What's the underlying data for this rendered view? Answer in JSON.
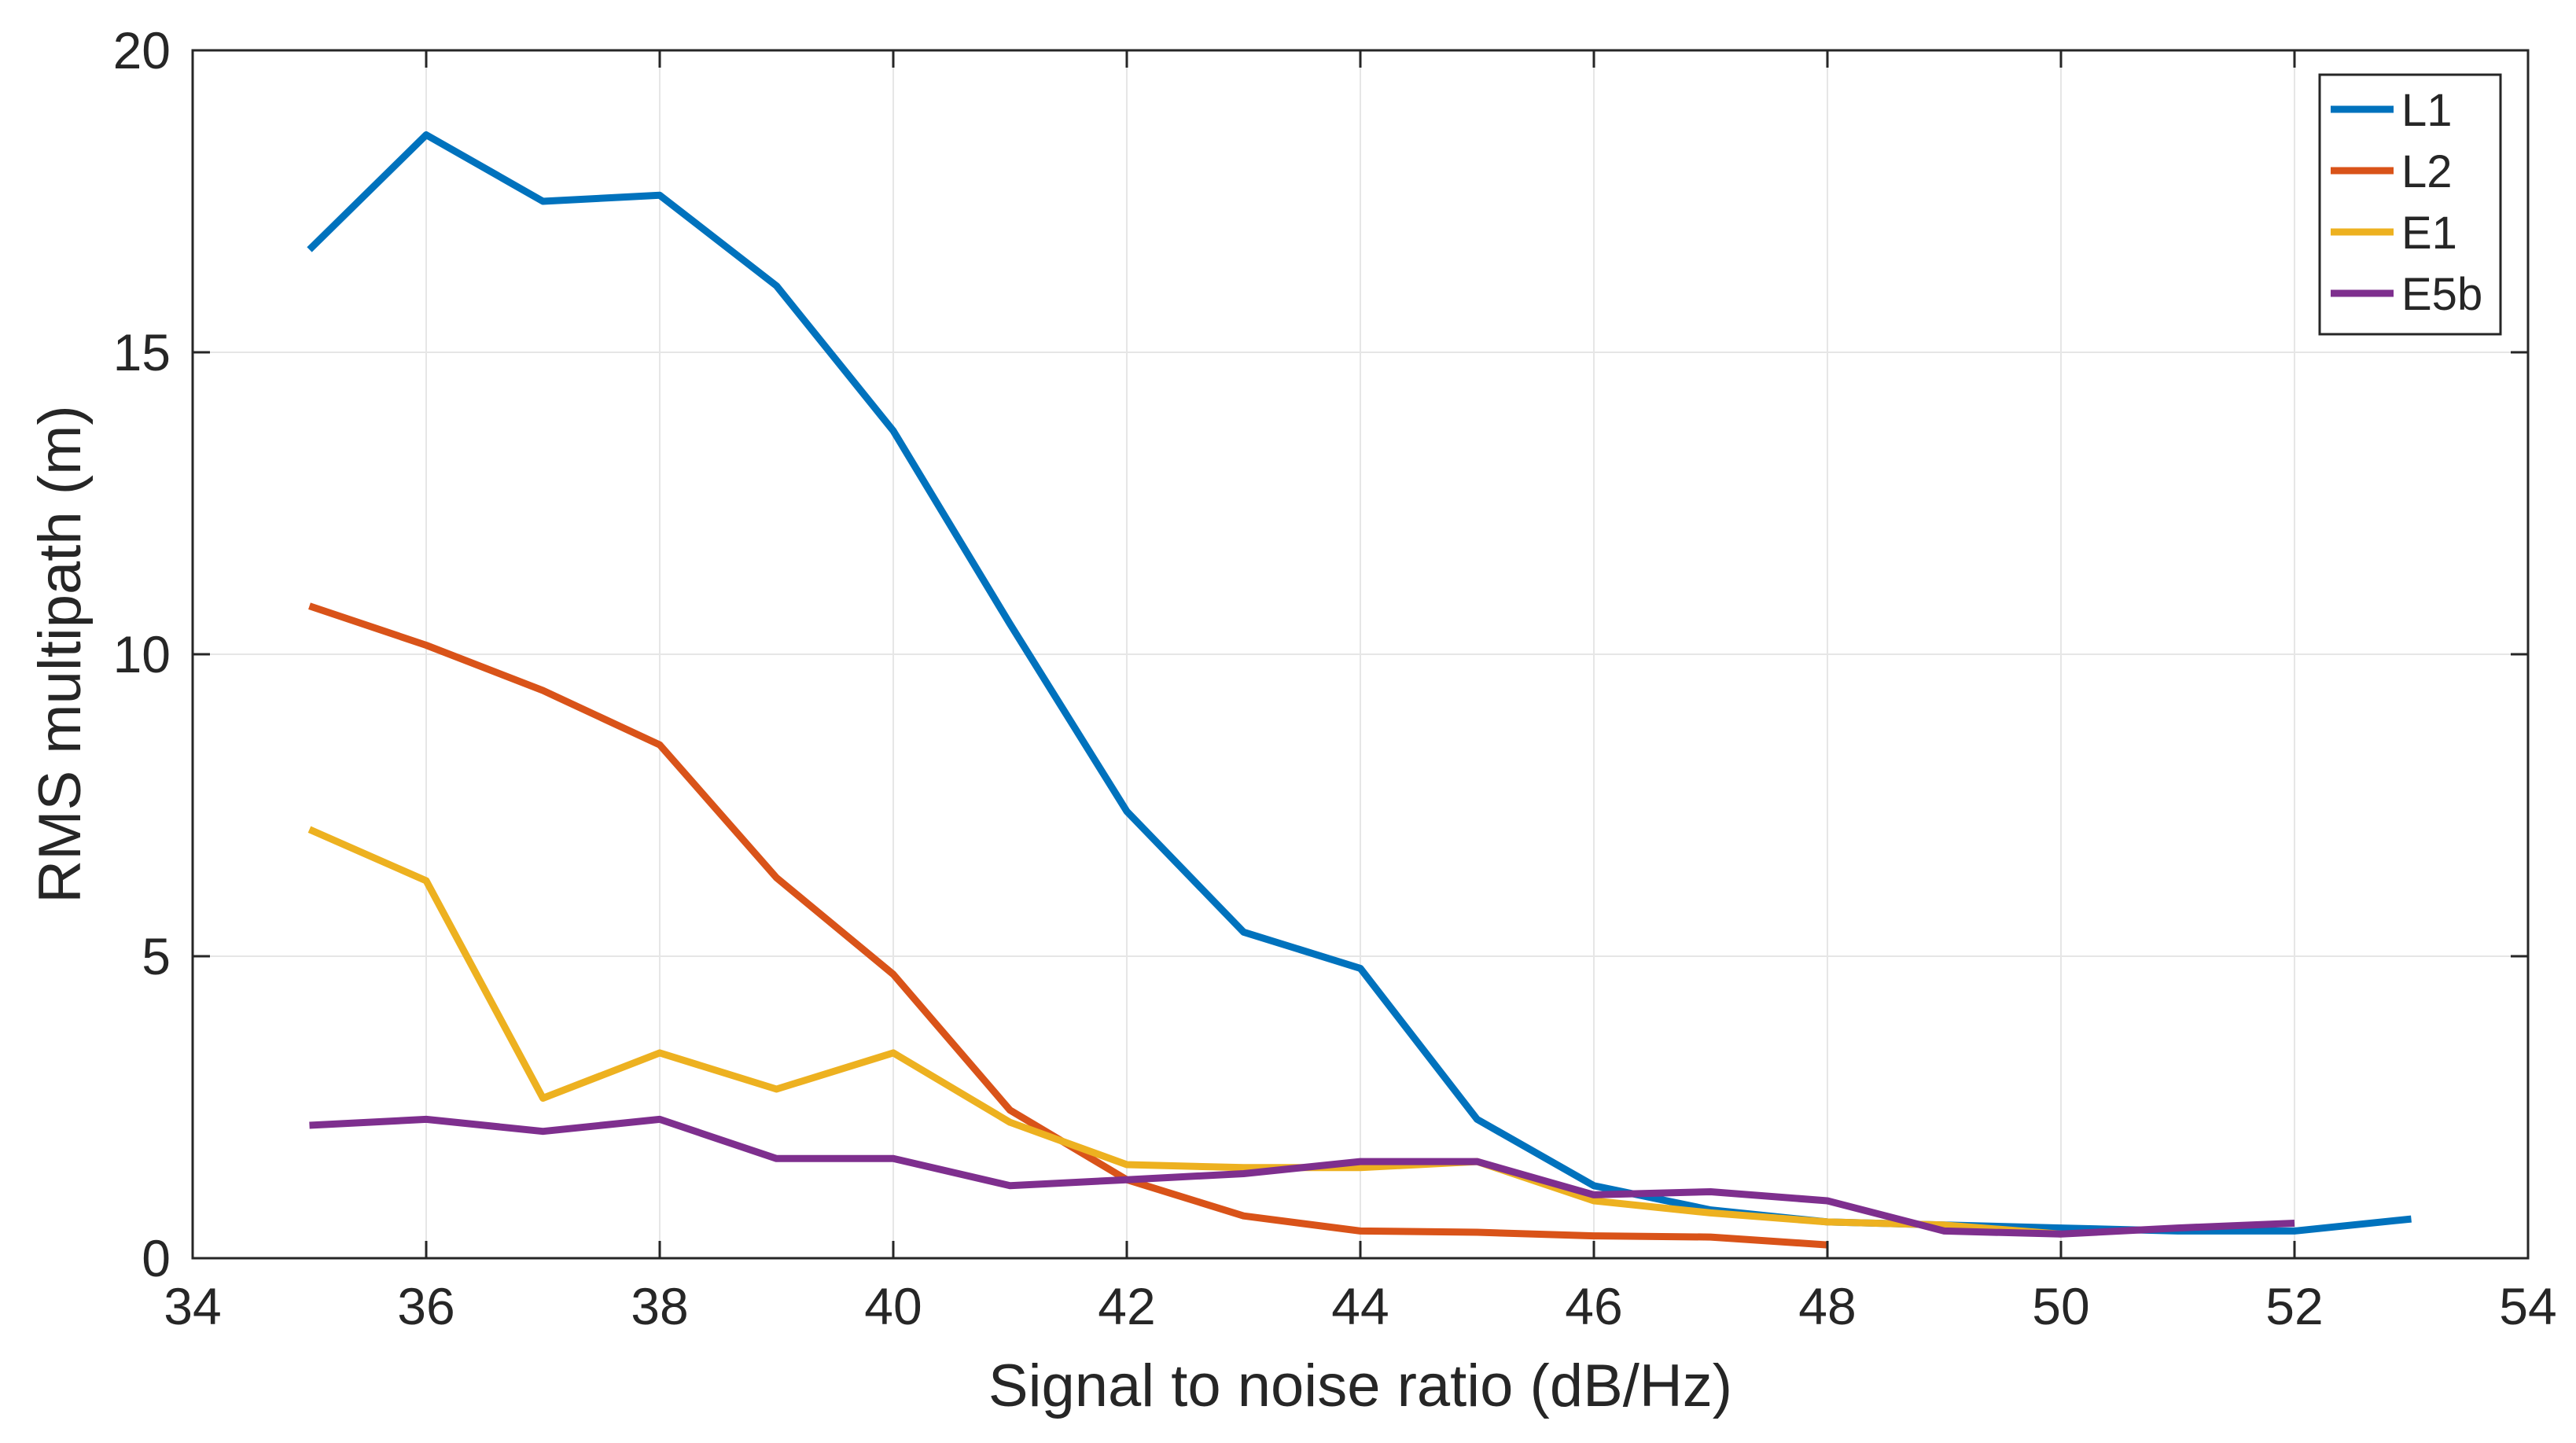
{
  "chart_data": {
    "type": "line",
    "title": "",
    "xlabel": "Signal to noise ratio (dB/Hz)",
    "ylabel": "RMS multipath (m)",
    "xlim": [
      34,
      54
    ],
    "ylim": [
      0,
      20
    ],
    "xticks": [
      34,
      36,
      38,
      40,
      42,
      44,
      46,
      48,
      50,
      52,
      54
    ],
    "yticks": [
      0,
      5,
      10,
      15,
      20
    ],
    "grid": true,
    "legend_position": "top-right",
    "series": [
      {
        "name": "L1",
        "color": "#0072BD",
        "x": [
          35,
          36,
          37,
          38,
          39,
          40,
          41,
          42,
          43,
          44,
          45,
          46,
          47,
          48,
          49,
          50,
          51,
          52,
          53
        ],
        "y": [
          16.7,
          18.6,
          17.5,
          17.6,
          16.1,
          13.7,
          10.5,
          7.4,
          5.4,
          4.8,
          2.3,
          1.2,
          0.8,
          0.6,
          0.55,
          0.5,
          0.45,
          0.45,
          0.65
        ]
      },
      {
        "name": "L2",
        "color": "#D95319",
        "x": [
          35,
          36,
          37,
          38,
          39,
          40,
          41,
          42,
          43,
          44,
          45,
          46,
          47,
          48
        ],
        "y": [
          10.8,
          10.15,
          9.4,
          8.5,
          6.3,
          4.7,
          2.45,
          1.3,
          0.7,
          0.45,
          0.43,
          0.37,
          0.35,
          0.22
        ]
      },
      {
        "name": "E1",
        "color": "#EDB120",
        "x": [
          35,
          36,
          37,
          38,
          39,
          40,
          41,
          42,
          43,
          44,
          45,
          46,
          47,
          48,
          49,
          50
        ],
        "y": [
          7.1,
          6.25,
          2.65,
          3.4,
          2.8,
          3.4,
          2.25,
          1.55,
          1.5,
          1.5,
          1.6,
          0.95,
          0.75,
          0.6,
          0.55,
          0.4
        ]
      },
      {
        "name": "E5b",
        "color": "#7E2F8E",
        "x": [
          35,
          36,
          37,
          38,
          39,
          40,
          41,
          42,
          43,
          44,
          45,
          46,
          47,
          48,
          49,
          50,
          51,
          52
        ],
        "y": [
          2.2,
          2.3,
          2.1,
          2.3,
          1.65,
          1.65,
          1.2,
          1.3,
          1.4,
          1.6,
          1.6,
          1.05,
          1.1,
          0.95,
          0.45,
          0.4,
          0.5,
          0.58
        ]
      }
    ]
  }
}
